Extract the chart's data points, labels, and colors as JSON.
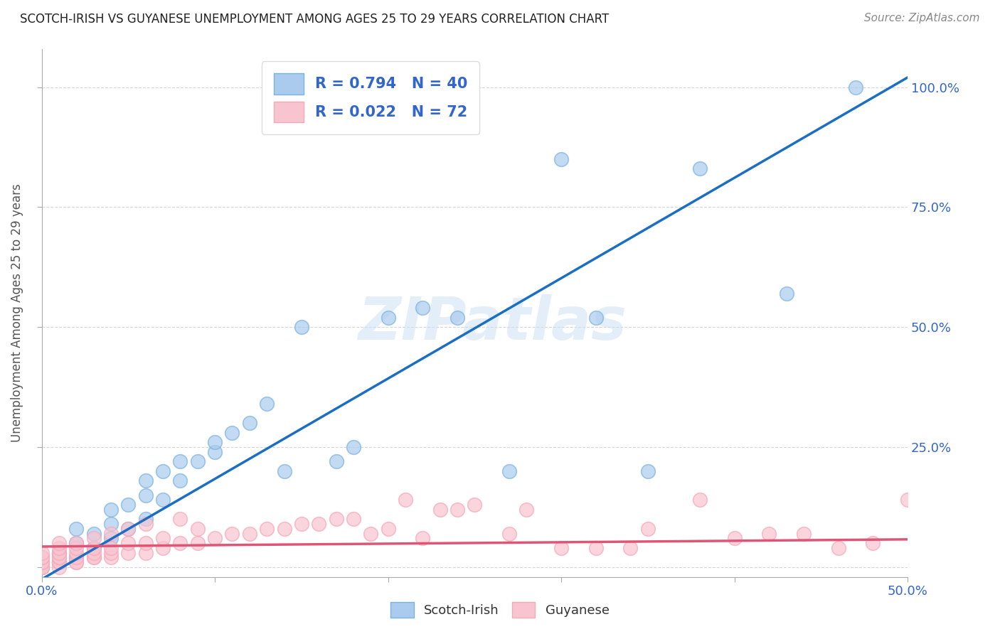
{
  "title": "SCOTCH-IRISH VS GUYANESE UNEMPLOYMENT AMONG AGES 25 TO 29 YEARS CORRELATION CHART",
  "source": "Source: ZipAtlas.com",
  "ylabel": "Unemployment Among Ages 25 to 29 years",
  "xlim": [
    0.0,
    0.5
  ],
  "ylim": [
    -0.02,
    1.08
  ],
  "scotch_irish_R": 0.794,
  "scotch_irish_N": 40,
  "guyanese_R": 0.022,
  "guyanese_N": 72,
  "scotch_irish_color": "#aacbee",
  "scotch_irish_edge_color": "#7ab3e0",
  "scotch_irish_line_color": "#1a6fc4",
  "guyanese_color": "#f8c4d0",
  "guyanese_edge_color": "#f4a9b8",
  "guyanese_line_color": "#e05575",
  "watermark": "ZIPatlas",
  "background_color": "#ffffff",
  "grid_color": "#cccccc",
  "scotch_irish_x": [
    0.0,
    0.01,
    0.01,
    0.02,
    0.02,
    0.02,
    0.03,
    0.03,
    0.04,
    0.04,
    0.04,
    0.05,
    0.05,
    0.06,
    0.06,
    0.06,
    0.07,
    0.07,
    0.08,
    0.08,
    0.09,
    0.1,
    0.1,
    0.11,
    0.12,
    0.13,
    0.14,
    0.15,
    0.17,
    0.18,
    0.2,
    0.22,
    0.24,
    0.27,
    0.3,
    0.32,
    0.35,
    0.38,
    0.43,
    0.47
  ],
  "scotch_irish_y": [
    0.0,
    0.01,
    0.03,
    0.02,
    0.05,
    0.08,
    0.04,
    0.07,
    0.06,
    0.09,
    0.12,
    0.08,
    0.13,
    0.1,
    0.15,
    0.18,
    0.14,
    0.2,
    0.18,
    0.22,
    0.22,
    0.24,
    0.26,
    0.28,
    0.3,
    0.34,
    0.2,
    0.5,
    0.22,
    0.25,
    0.52,
    0.54,
    0.52,
    0.2,
    0.85,
    0.52,
    0.2,
    0.83,
    0.57,
    1.0
  ],
  "guyanese_x": [
    0.0,
    0.0,
    0.0,
    0.0,
    0.0,
    0.0,
    0.0,
    0.0,
    0.01,
    0.01,
    0.01,
    0.01,
    0.01,
    0.01,
    0.01,
    0.01,
    0.02,
    0.02,
    0.02,
    0.02,
    0.02,
    0.02,
    0.03,
    0.03,
    0.03,
    0.03,
    0.03,
    0.04,
    0.04,
    0.04,
    0.04,
    0.05,
    0.05,
    0.05,
    0.06,
    0.06,
    0.06,
    0.07,
    0.07,
    0.08,
    0.08,
    0.09,
    0.09,
    0.1,
    0.11,
    0.12,
    0.13,
    0.14,
    0.15,
    0.16,
    0.17,
    0.18,
    0.19,
    0.2,
    0.21,
    0.22,
    0.23,
    0.24,
    0.25,
    0.27,
    0.28,
    0.3,
    0.32,
    0.34,
    0.35,
    0.38,
    0.4,
    0.42,
    0.44,
    0.46,
    0.48,
    0.5
  ],
  "guyanese_y": [
    0.0,
    0.0,
    0.0,
    0.01,
    0.01,
    0.02,
    0.02,
    0.03,
    0.0,
    0.01,
    0.01,
    0.02,
    0.02,
    0.03,
    0.04,
    0.05,
    0.01,
    0.01,
    0.02,
    0.03,
    0.04,
    0.05,
    0.02,
    0.02,
    0.03,
    0.04,
    0.06,
    0.02,
    0.03,
    0.04,
    0.07,
    0.03,
    0.05,
    0.08,
    0.03,
    0.05,
    0.09,
    0.04,
    0.06,
    0.05,
    0.1,
    0.05,
    0.08,
    0.06,
    0.07,
    0.07,
    0.08,
    0.08,
    0.09,
    0.09,
    0.1,
    0.1,
    0.07,
    0.08,
    0.14,
    0.06,
    0.12,
    0.12,
    0.13,
    0.07,
    0.12,
    0.04,
    0.04,
    0.04,
    0.08,
    0.14,
    0.06,
    0.07,
    0.07,
    0.04,
    0.05,
    0.14
  ],
  "si_line_x0": 0.0,
  "si_line_y0": -0.025,
  "si_line_x1": 0.5,
  "si_line_y1": 1.02,
  "gu_line_x0": 0.0,
  "gu_line_y0": 0.043,
  "gu_line_x1": 0.5,
  "gu_line_y1": 0.058
}
